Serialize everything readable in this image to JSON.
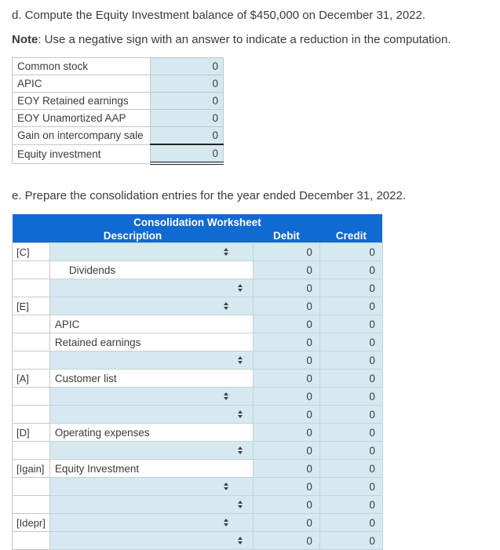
{
  "colors": {
    "header_blue": "#1169d2",
    "input_cell_blue": "#d6e9f1"
  },
  "section_d": {
    "heading": "d. Compute the Equity Investment balance of $450,000 on December 31, 2022.",
    "note_label": "Note",
    "note_text": ": Use a negative sign with an answer to indicate a reduction in the computation.",
    "rows": [
      {
        "label": "Common stock",
        "value": "0",
        "underline": "none"
      },
      {
        "label": "APIC",
        "value": "0",
        "underline": "none"
      },
      {
        "label": "EOY Retained earnings",
        "value": "0",
        "underline": "none"
      },
      {
        "label": "EOY Unamortized AAP",
        "value": "0",
        "underline": "none"
      },
      {
        "label": "Gain on intercompany sale",
        "value": "0",
        "underline": "single"
      },
      {
        "label": "Equity investment",
        "value": "0",
        "underline": "double"
      }
    ]
  },
  "section_e": {
    "heading": "e. Prepare the consolidation entries for the year ended December 31, 2022."
  },
  "worksheet": {
    "title": "Consolidation Worksheet",
    "columns": {
      "description": "Description",
      "debit": "Debit",
      "credit": "Credit"
    },
    "select_icon": "up-down-arrows",
    "rows": [
      {
        "label": "[C]",
        "kind": "select",
        "text": "",
        "indent": false,
        "debit": "0",
        "credit": "0"
      },
      {
        "label": "",
        "kind": "text",
        "text": "Dividends",
        "indent": true,
        "debit": "0",
        "credit": "0"
      },
      {
        "label": "",
        "kind": "select",
        "text": "",
        "indent": true,
        "debit": "0",
        "credit": "0"
      },
      {
        "label": "[E]",
        "kind": "select",
        "text": "",
        "indent": false,
        "debit": "0",
        "credit": "0"
      },
      {
        "label": "",
        "kind": "text",
        "text": "APIC",
        "indent": false,
        "debit": "0",
        "credit": "0"
      },
      {
        "label": "",
        "kind": "text",
        "text": "Retained earnings",
        "indent": false,
        "debit": "0",
        "credit": "0"
      },
      {
        "label": "",
        "kind": "select",
        "text": "",
        "indent": true,
        "debit": "0",
        "credit": "0"
      },
      {
        "label": "[A]",
        "kind": "text",
        "text": "Customer list",
        "indent": false,
        "debit": "0",
        "credit": "0"
      },
      {
        "label": "",
        "kind": "select",
        "text": "",
        "indent": false,
        "debit": "0",
        "credit": "0"
      },
      {
        "label": "",
        "kind": "select",
        "text": "",
        "indent": true,
        "debit": "0",
        "credit": "0"
      },
      {
        "label": "[D]",
        "kind": "text",
        "text": "Operating expenses",
        "indent": false,
        "debit": "0",
        "credit": "0"
      },
      {
        "label": "",
        "kind": "select",
        "text": "",
        "indent": true,
        "debit": "0",
        "credit": "0"
      },
      {
        "label": "[Igain]",
        "kind": "text",
        "text": "Equity Investment",
        "indent": false,
        "debit": "0",
        "credit": "0"
      },
      {
        "label": "",
        "kind": "select",
        "text": "",
        "indent": false,
        "debit": "0",
        "credit": "0"
      },
      {
        "label": "",
        "kind": "select",
        "text": "",
        "indent": true,
        "debit": "0",
        "credit": "0"
      },
      {
        "label": "[Idepr]",
        "kind": "select",
        "text": "",
        "indent": false,
        "debit": "0",
        "credit": "0"
      },
      {
        "label": "",
        "kind": "select",
        "text": "",
        "indent": true,
        "debit": "0",
        "credit": "0"
      }
    ]
  }
}
